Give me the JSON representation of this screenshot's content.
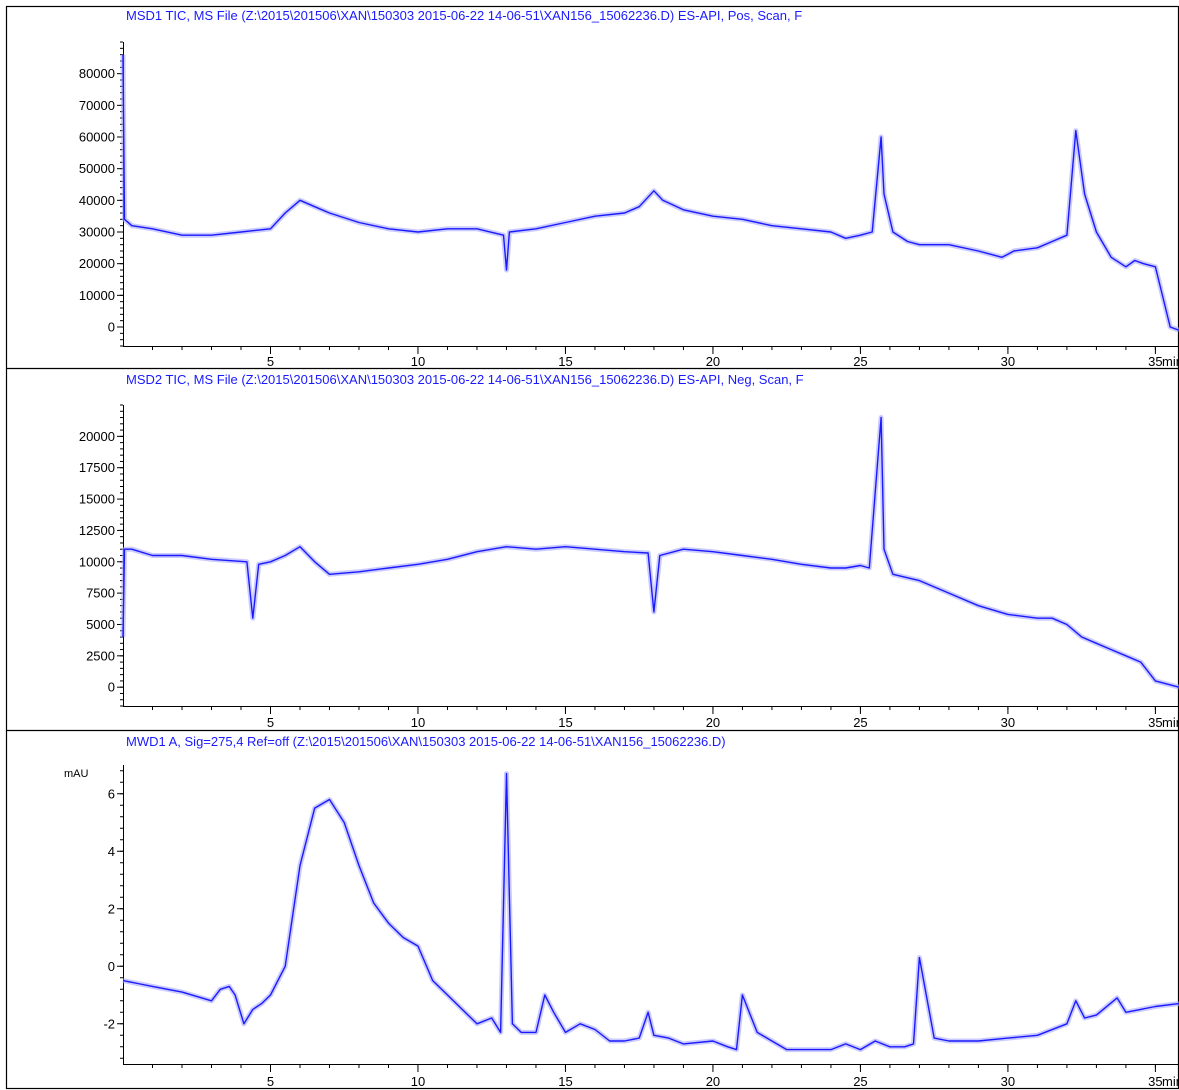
{
  "colors": {
    "trace": "#1a1aff",
    "trace_halo": "#a8a8ff",
    "axis": "#000000",
    "background": "#ffffff"
  },
  "chart_data": [
    {
      "type": "line",
      "title": "MSD1 TIC, MS File (Z:\\2015\\201506\\XAN\\150303 2015-06-22 14-06-51\\XAN156_15062236.D)     ES-API, Pos, Scan, F",
      "xunit": "min",
      "xlim": [
        0,
        35.8
      ],
      "ylim": [
        -6000,
        90000
      ],
      "xticks": [
        5,
        10,
        15,
        20,
        25,
        30,
        35
      ],
      "yticks": [
        0,
        10000,
        20000,
        30000,
        40000,
        50000,
        60000,
        70000,
        80000
      ],
      "grid": false,
      "series": [
        {
          "x": [
            0,
            0.05,
            0.3,
            1,
            2,
            3,
            4,
            5,
            5.5,
            6,
            6.5,
            7,
            8,
            9,
            10,
            11,
            12,
            12.9,
            13,
            13.1,
            14,
            15,
            16,
            17,
            17.5,
            18,
            18.3,
            19,
            20,
            21,
            22,
            23,
            24,
            24.5,
            25,
            25.4,
            25.7,
            25.8,
            26.1,
            26.6,
            27,
            28,
            29,
            29.8,
            30,
            30.2,
            31,
            31.5,
            32,
            32.3,
            32.6,
            33,
            33.5,
            34,
            34.3,
            34.6,
            35,
            35.5,
            35.8
          ],
          "y": [
            86000,
            34000,
            32000,
            31000,
            29000,
            29000,
            30000,
            31000,
            36000,
            40000,
            38000,
            36000,
            33000,
            31000,
            30000,
            31000,
            31000,
            29000,
            18000,
            30000,
            31000,
            33000,
            35000,
            36000,
            38000,
            43000,
            40000,
            37000,
            35000,
            34000,
            32000,
            31000,
            30000,
            28000,
            29000,
            30000,
            60000,
            42000,
            30000,
            27000,
            26000,
            26000,
            24000,
            22000,
            23000,
            24000,
            25000,
            27000,
            29000,
            62000,
            42000,
            30000,
            22000,
            19000,
            21000,
            20000,
            19000,
            0,
            -1000
          ]
        }
      ]
    },
    {
      "type": "line",
      "title": "MSD2 TIC, MS File (Z:\\2015\\201506\\XAN\\150303 2015-06-22 14-06-51\\XAN156_15062236.D)     ES-API, Neg, Scan, F",
      "xunit": "min",
      "xlim": [
        0,
        35.8
      ],
      "ylim": [
        -1500,
        22500
      ],
      "xticks": [
        5,
        10,
        15,
        20,
        25,
        30,
        35
      ],
      "yticks": [
        0,
        2500,
        5000,
        7500,
        10000,
        12500,
        15000,
        17500,
        20000
      ],
      "grid": false,
      "series": [
        {
          "x": [
            0,
            0.05,
            0.3,
            1,
            2,
            3,
            4.2,
            4.4,
            4.6,
            5,
            5.5,
            6,
            6.5,
            7,
            8,
            9,
            10,
            11,
            12,
            13,
            14,
            15,
            16,
            17,
            17.8,
            18,
            18.2,
            19,
            20,
            21,
            22,
            23,
            24,
            24.5,
            25,
            25.3,
            25.7,
            25.8,
            26.1,
            27,
            28,
            29,
            30,
            31,
            31.5,
            32,
            32.5,
            33,
            33.5,
            34,
            34.5,
            35,
            35.8
          ],
          "y": [
            4000,
            11000,
            11000,
            10500,
            10500,
            10200,
            10000,
            5500,
            9800,
            10000,
            10500,
            11200,
            10000,
            9000,
            9200,
            9500,
            9800,
            10200,
            10800,
            11200,
            11000,
            11200,
            11000,
            10800,
            10700,
            6000,
            10500,
            11000,
            10800,
            10500,
            10200,
            9800,
            9500,
            9500,
            9700,
            9500,
            21500,
            11000,
            9000,
            8500,
            7500,
            6500,
            5800,
            5500,
            5500,
            5000,
            4000,
            3500,
            3000,
            2500,
            2000,
            500,
            0
          ]
        }
      ]
    },
    {
      "type": "line",
      "title": "MWD1 A, Sig=275,4 Ref=off (Z:\\2015\\201506\\XAN\\150303 2015-06-22 14-06-51\\XAN156_15062236.D)",
      "ylabel": "mAU",
      "xunit": "min",
      "xlim": [
        0,
        35.8
      ],
      "ylim": [
        -3.4,
        7.0
      ],
      "xticks": [
        5,
        10,
        15,
        20,
        25,
        30,
        35
      ],
      "yticks": [
        -2,
        0,
        2,
        4,
        6
      ],
      "grid": false,
      "series": [
        {
          "x": [
            0,
            0.5,
            1,
            2,
            3,
            3.3,
            3.6,
            3.8,
            4.1,
            4.4,
            4.7,
            5,
            5.5,
            6,
            6.5,
            7,
            7.5,
            8,
            8.5,
            9,
            9.5,
            10,
            10.5,
            11,
            11.5,
            12,
            12.5,
            12.8,
            13.0,
            13.2,
            13.5,
            14,
            14.3,
            14.6,
            15,
            15.5,
            16,
            16.5,
            17,
            17.5,
            17.8,
            18,
            18.5,
            19,
            20,
            20.5,
            20.8,
            21,
            21.5,
            22,
            22.5,
            23,
            23.5,
            24,
            24.5,
            25,
            25.5,
            26,
            26.5,
            26.8,
            27,
            27.5,
            28,
            29,
            30,
            31,
            32,
            32.3,
            32.6,
            33,
            33.7,
            34,
            34.5,
            35,
            35.8
          ],
          "y": [
            -0.5,
            -0.6,
            -0.7,
            -0.9,
            -1.2,
            -0.8,
            -0.7,
            -1.0,
            -2.0,
            -1.5,
            -1.3,
            -1.0,
            0.0,
            3.5,
            5.5,
            5.8,
            5.0,
            3.5,
            2.2,
            1.5,
            1.0,
            0.7,
            -0.5,
            -1.0,
            -1.5,
            -2.0,
            -1.8,
            -2.3,
            6.7,
            -2.0,
            -2.3,
            -2.3,
            -1.0,
            -1.6,
            -2.3,
            -2.0,
            -2.2,
            -2.6,
            -2.6,
            -2.5,
            -1.6,
            -2.4,
            -2.5,
            -2.7,
            -2.6,
            -2.8,
            -2.9,
            -1.0,
            -2.3,
            -2.6,
            -2.9,
            -2.9,
            -2.9,
            -2.9,
            -2.7,
            -2.9,
            -2.6,
            -2.8,
            -2.8,
            -2.7,
            0.3,
            -2.5,
            -2.6,
            -2.6,
            -2.5,
            -2.4,
            -2.0,
            -1.2,
            -1.8,
            -1.7,
            -1.1,
            -1.6,
            -1.5,
            -1.4,
            -1.3
          ]
        }
      ]
    }
  ]
}
